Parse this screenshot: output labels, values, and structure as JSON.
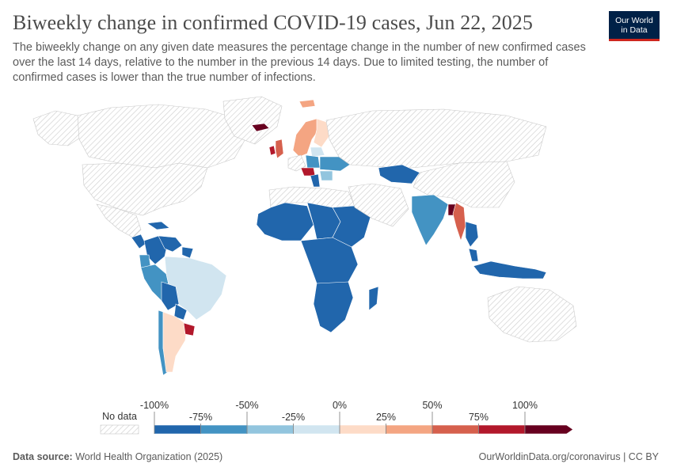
{
  "header": {
    "title": "Biweekly change in confirmed COVID-19 cases, Jun 22, 2025",
    "subtitle": "The biweekly change on any given date measures the percentage change in the number of new confirmed cases over the last 14 days, relative to the number in the previous 14 days. Due to limited testing, the number of confirmed cases is lower than the true number of infections."
  },
  "logo": {
    "line1": "Our World",
    "line2": "in Data"
  },
  "colors": {
    "no_data_stroke": "#c9c9c9",
    "land_stroke": "#ffffff",
    "bins": [
      "#2166ac",
      "#4393c3",
      "#92c5de",
      "#d1e5f0",
      "#fddbc7",
      "#f4a582",
      "#d6604d",
      "#b2182b",
      "#67001f"
    ]
  },
  "legend": {
    "no_data_label": "No data",
    "ticks_top": [
      "-100%",
      "-50%",
      "0%",
      "50%",
      "100%"
    ],
    "ticks_bottom": [
      "-75%",
      "-25%",
      "25%",
      "75%"
    ]
  },
  "map_data": {
    "type": "choropleth",
    "date": "Jun 22, 2025",
    "metric": "Biweekly change in confirmed COVID-19 cases",
    "bin_edges": [
      -100,
      -75,
      -50,
      -25,
      0,
      25,
      50,
      75,
      100
    ],
    "regions": [
      {
        "name": "canada",
        "bin": null
      },
      {
        "name": "united-states",
        "bin": null
      },
      {
        "name": "mexico",
        "bin": null
      },
      {
        "name": "greenland",
        "bin": null
      },
      {
        "name": "alaska",
        "bin": null
      },
      {
        "name": "cuba",
        "bin": 0
      },
      {
        "name": "central-america",
        "bin": 0
      },
      {
        "name": "colombia",
        "bin": 0
      },
      {
        "name": "venezuela",
        "bin": 0
      },
      {
        "name": "guyana",
        "bin": 0
      },
      {
        "name": "ecuador",
        "bin": 1
      },
      {
        "name": "peru",
        "bin": 1
      },
      {
        "name": "brazil",
        "bin": 3
      },
      {
        "name": "bolivia",
        "bin": 0
      },
      {
        "name": "paraguay",
        "bin": 0
      },
      {
        "name": "chile",
        "bin": 1
      },
      {
        "name": "argentina",
        "bin": 4
      },
      {
        "name": "uruguay",
        "bin": 7
      },
      {
        "name": "iceland",
        "bin": 8
      },
      {
        "name": "ireland",
        "bin": 7
      },
      {
        "name": "uk",
        "bin": 6
      },
      {
        "name": "norway-sweden",
        "bin": 5
      },
      {
        "name": "finland",
        "bin": 4
      },
      {
        "name": "svalbard",
        "bin": 5
      },
      {
        "name": "baltics",
        "bin": 3
      },
      {
        "name": "poland",
        "bin": 1
      },
      {
        "name": "germany",
        "bin": null
      },
      {
        "name": "central-europe",
        "bin": 7
      },
      {
        "name": "balkans",
        "bin": 0
      },
      {
        "name": "ukraine",
        "bin": 1
      },
      {
        "name": "romania",
        "bin": 2
      },
      {
        "name": "russia",
        "bin": null
      },
      {
        "name": "kazakhstan",
        "bin": 0
      },
      {
        "name": "west-africa",
        "bin": 0
      },
      {
        "name": "chad-sudan-region",
        "bin": 0
      },
      {
        "name": "north-africa",
        "bin": null
      },
      {
        "name": "central-africa",
        "bin": 0
      },
      {
        "name": "east-africa",
        "bin": 0
      },
      {
        "name": "southern-africa",
        "bin": 0
      },
      {
        "name": "madagascar",
        "bin": 0
      },
      {
        "name": "middle-east",
        "bin": null
      },
      {
        "name": "india",
        "bin": 1
      },
      {
        "name": "bangladesh",
        "bin": 8
      },
      {
        "name": "myanmar",
        "bin": 6
      },
      {
        "name": "thailand",
        "bin": 0
      },
      {
        "name": "malaysia",
        "bin": 0
      },
      {
        "name": "indonesia",
        "bin": 0
      },
      {
        "name": "china",
        "bin": null
      },
      {
        "name": "australia",
        "bin": null
      }
    ]
  },
  "footer": {
    "source_label": "Data source:",
    "source_value": "World Health Organization (2025)",
    "right": "OurWorldinData.org/coronavirus | CC BY"
  }
}
